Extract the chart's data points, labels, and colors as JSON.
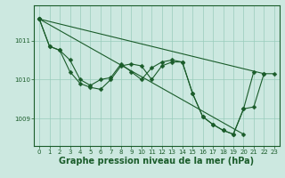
{
  "background_color": "#cce8e0",
  "grid_color": "#99ccbb",
  "line_color": "#1a5c2a",
  "marker_color": "#1a5c2a",
  "xlabel": "Graphe pression niveau de la mer (hPa)",
  "xlabel_fontsize": 7.0,
  "ylim": [
    1008.3,
    1011.9
  ],
  "xlim": [
    -0.5,
    23.5
  ],
  "yticks": [
    1009,
    1010,
    1011
  ],
  "xticks": [
    0,
    1,
    2,
    3,
    4,
    5,
    6,
    7,
    8,
    9,
    10,
    11,
    12,
    13,
    14,
    15,
    16,
    17,
    18,
    19,
    20,
    21,
    22,
    23
  ],
  "line_upper": [
    [
      0,
      1011.55
    ],
    [
      22,
      1010.15
    ]
  ],
  "line_lower": [
    [
      0,
      1011.55
    ],
    [
      20,
      1008.6
    ]
  ],
  "wavy1_x": [
    0,
    1,
    2,
    3,
    4,
    5,
    6,
    7,
    8,
    9,
    10,
    11,
    12,
    13,
    14,
    15,
    16,
    17,
    18,
    19,
    20,
    21
  ],
  "wavy1_y": [
    1011.55,
    1010.85,
    1010.75,
    1010.5,
    1010.0,
    1009.85,
    1010.0,
    1010.05,
    1010.4,
    1010.2,
    1010.0,
    1010.3,
    1010.45,
    1010.5,
    1010.45,
    1009.65,
    1009.05,
    1008.85,
    1008.7,
    1008.6,
    1009.25,
    1010.2
  ],
  "wavy2_x": [
    0,
    1,
    2,
    3,
    4,
    5,
    6,
    7,
    8,
    9,
    10,
    11,
    12,
    13,
    14,
    15,
    16,
    17,
    18,
    19,
    20,
    21,
    22,
    23
  ],
  "wavy2_y": [
    1011.55,
    1010.85,
    1010.75,
    1010.2,
    1009.9,
    1009.8,
    1009.75,
    1010.0,
    1010.35,
    1010.4,
    1010.35,
    1010.0,
    1010.35,
    1010.45,
    1010.45,
    1009.65,
    1009.05,
    1008.85,
    1008.7,
    1008.6,
    1009.25,
    1009.3,
    1010.15,
    1010.15
  ]
}
